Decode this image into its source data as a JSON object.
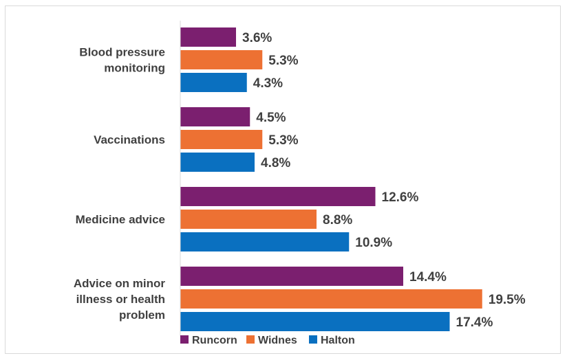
{
  "chart_data": {
    "type": "bar",
    "orientation": "horizontal",
    "categories": [
      [
        "Blood pressure",
        "monitoring"
      ],
      [
        "Vaccinations"
      ],
      [
        "Medicine advice"
      ],
      [
        "Advice on minor",
        "illness or health",
        "problem"
      ]
    ],
    "series": [
      {
        "name": "Runcorn",
        "color": "#7b1f6f",
        "values": [
          3.6,
          4.5,
          12.6,
          14.4
        ],
        "labels": [
          "3.6%",
          "4.5%",
          "12.6%",
          "14.4%"
        ]
      },
      {
        "name": "Widnes",
        "color": "#ed7133",
        "values": [
          5.3,
          5.3,
          8.8,
          19.5
        ],
        "labels": [
          "5.3%",
          "5.3%",
          "8.8%",
          "19.5%"
        ]
      },
      {
        "name": "Halton",
        "color": "#0a70c0",
        "values": [
          4.3,
          4.8,
          10.9,
          17.4
        ],
        "labels": [
          "4.3%",
          "4.8%",
          "10.9%",
          "17.4%"
        ]
      }
    ],
    "xlim": [
      0,
      20
    ],
    "grid": false,
    "legend_position": "bottom",
    "title": "",
    "xlabel": "",
    "ylabel": ""
  }
}
